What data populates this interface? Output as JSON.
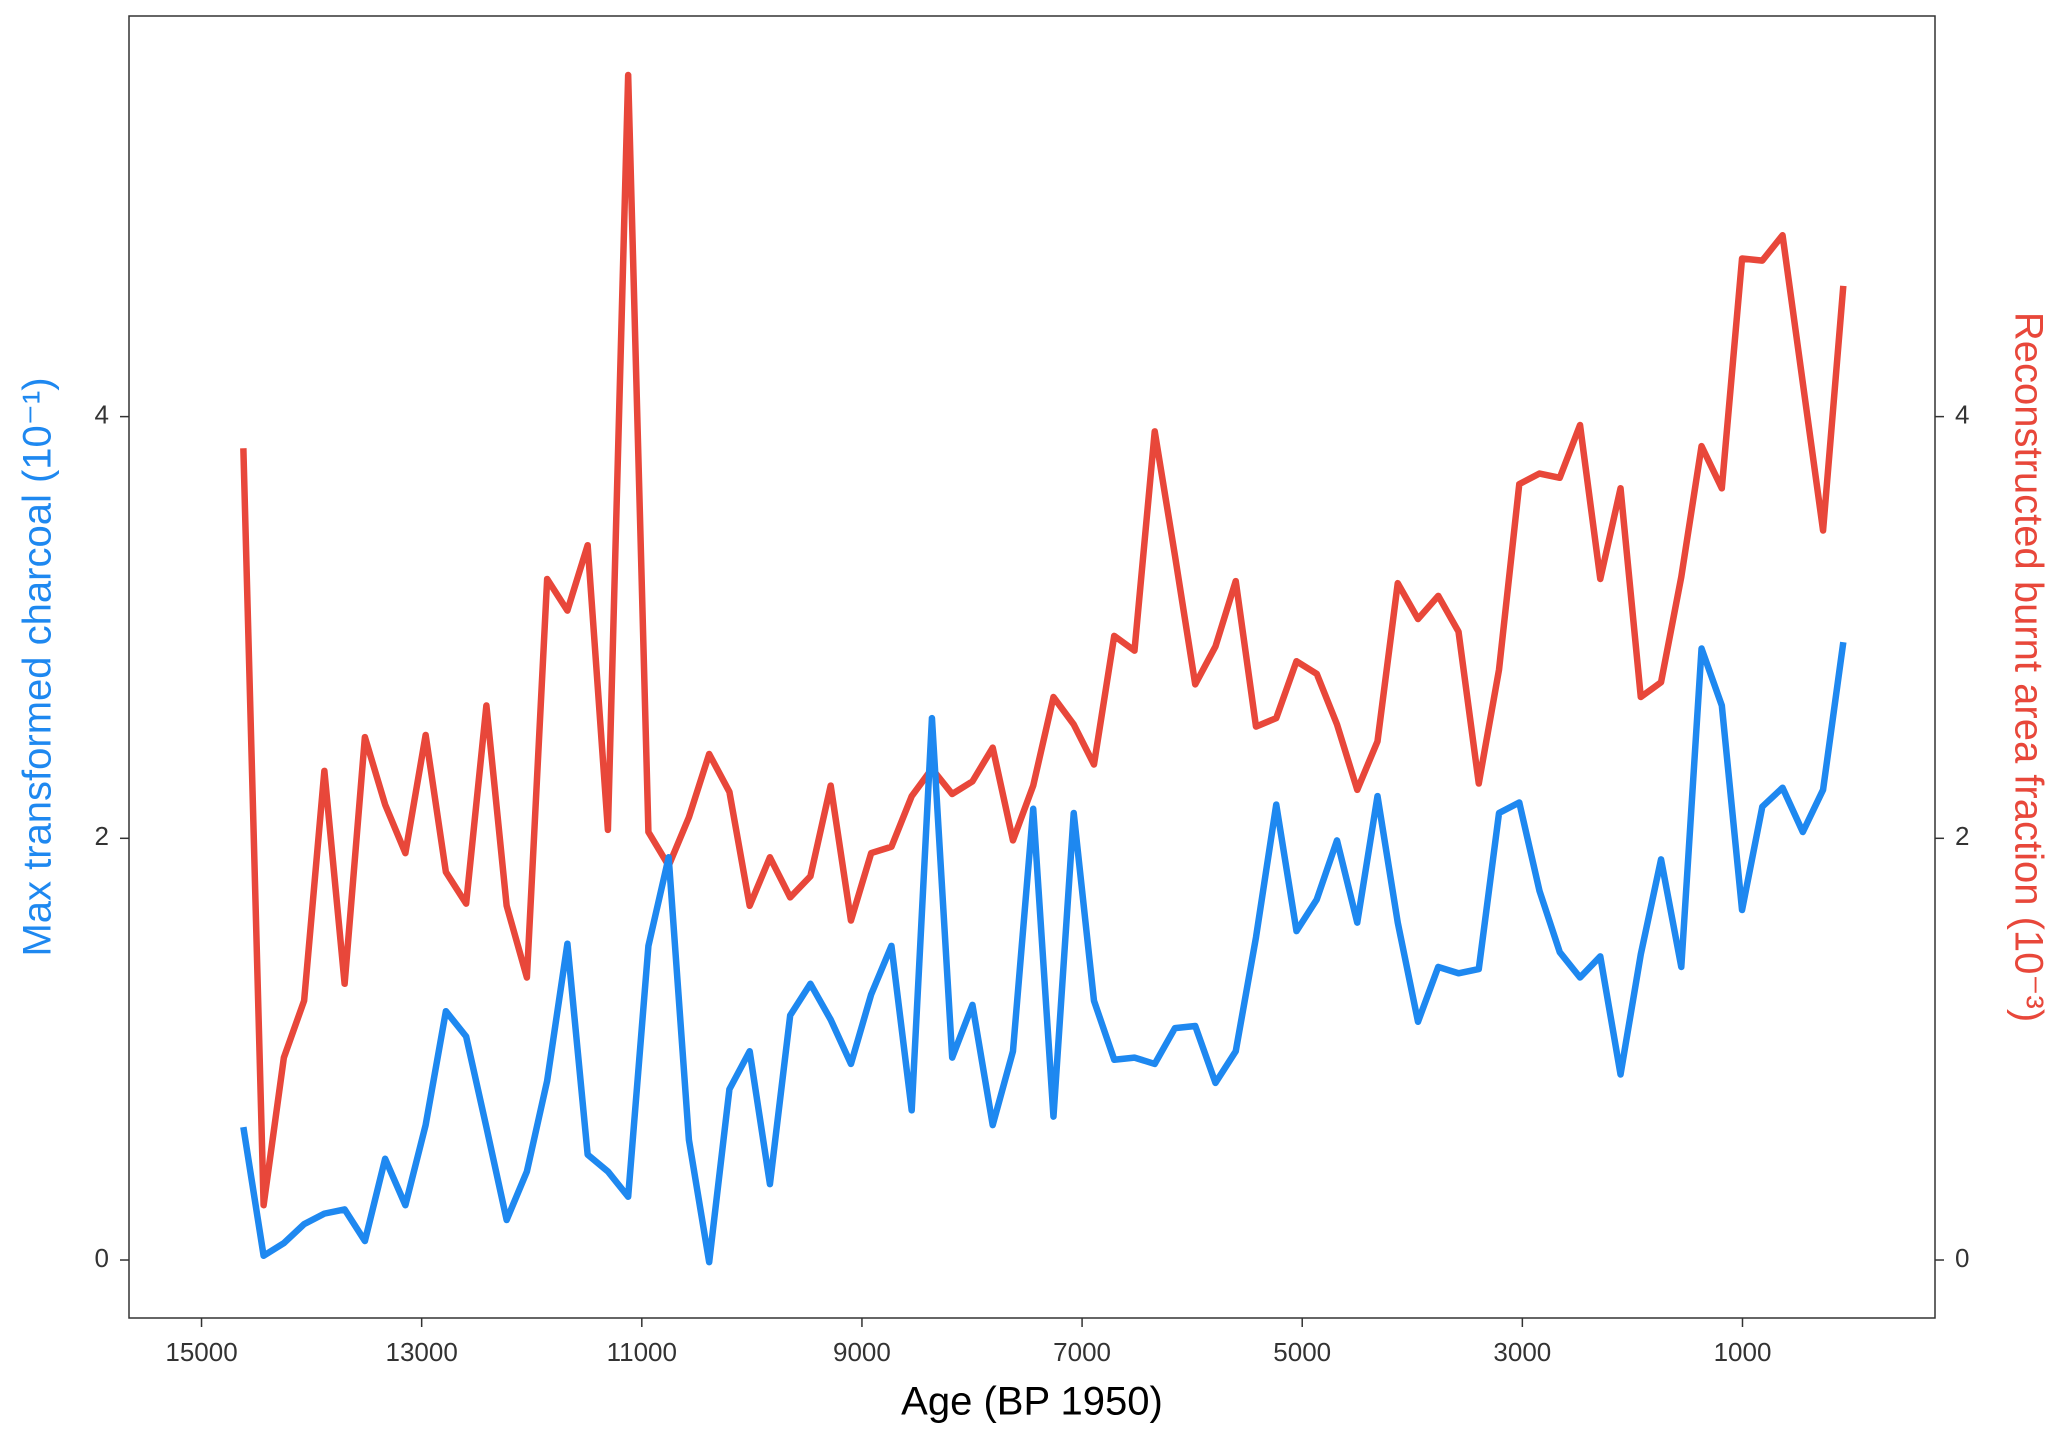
{
  "chart_data": {
    "type": "line",
    "xlabel": "Age (BP 1950)",
    "ylabel": "Max transformed charcoal (10⁻¹)",
    "y2label": "Reconstructed burnt area fraction (10⁻³)",
    "x": [
      14620,
      14436,
      14252,
      14068,
      13884,
      13700,
      13516,
      13332,
      13148,
      12964,
      12780,
      12596,
      12412,
      12228,
      12044,
      11860,
      11676,
      11492,
      11308,
      11124,
      10940,
      10756,
      10572,
      10388,
      10204,
      10020,
      9836,
      9652,
      9468,
      9284,
      9100,
      8916,
      8732,
      8548,
      8364,
      8180,
      7996,
      7812,
      7628,
      7444,
      7260,
      7076,
      6892,
      6708,
      6524,
      6340,
      6156,
      5972,
      5788,
      5604,
      5420,
      5236,
      5052,
      4868,
      4684,
      4500,
      4316,
      4132,
      3948,
      3764,
      3580,
      3396,
      3212,
      3028,
      2844,
      2660,
      2476,
      2292,
      2108,
      1924,
      1740,
      1556,
      1372,
      1188,
      1004,
      820,
      636,
      452,
      268,
      84
    ],
    "series": [
      {
        "color": "#1e88f0",
        "axis": "y",
        "values": [
          0.63,
          0.02,
          0.08,
          0.17,
          0.22,
          0.24,
          0.09,
          0.48,
          0.26,
          0.64,
          1.18,
          1.06,
          0.63,
          0.19,
          0.42,
          0.85,
          1.5,
          0.5,
          0.42,
          0.3,
          1.49,
          1.91,
          0.57,
          -0.01,
          0.81,
          0.99,
          0.36,
          1.16,
          1.31,
          1.14,
          0.93,
          1.26,
          1.49,
          0.71,
          2.57,
          0.96,
          1.21,
          0.64,
          0.99,
          2.14,
          0.68,
          2.12,
          1.23,
          0.95,
          0.96,
          0.93,
          1.1,
          1.11,
          0.84,
          0.99,
          1.53,
          2.16,
          1.56,
          1.71,
          1.99,
          1.6,
          2.2,
          1.6,
          1.13,
          1.39,
          1.36,
          1.38,
          2.12,
          2.17,
          1.75,
          1.46,
          1.34,
          1.44,
          0.88,
          1.45,
          1.9,
          1.39,
          2.9,
          2.63,
          1.66,
          2.15,
          2.24,
          2.03,
          2.23,
          2.93
        ]
      },
      {
        "color": "#e8473a",
        "axis": "y2",
        "values": [
          3.85,
          0.26,
          0.96,
          1.23,
          2.32,
          1.31,
          2.48,
          2.16,
          1.93,
          2.49,
          1.84,
          1.69,
          2.63,
          1.68,
          1.34,
          3.23,
          3.08,
          3.39,
          2.04,
          5.62,
          2.03,
          1.87,
          2.1,
          2.4,
          2.22,
          1.68,
          1.91,
          1.72,
          1.82,
          2.25,
          1.61,
          1.93,
          1.96,
          2.2,
          2.33,
          2.21,
          2.27,
          2.43,
          1.99,
          2.25,
          2.67,
          2.54,
          2.35,
          2.96,
          2.89,
          3.93,
          3.34,
          2.73,
          2.91,
          3.22,
          2.53,
          2.57,
          2.84,
          2.78,
          2.54,
          2.23,
          2.46,
          3.21,
          3.04,
          3.15,
          2.98,
          2.26,
          2.8,
          3.68,
          3.73,
          3.71,
          3.96,
          3.23,
          3.66,
          2.67,
          2.74,
          3.24,
          3.86,
          3.66,
          4.75,
          4.74,
          4.86,
          4.16,
          3.46,
          4.62
        ]
      }
    ],
    "xlim": [
      15659,
      -749
    ],
    "xticks": [
      15000,
      13000,
      11000,
      9000,
      7000,
      5000,
      3000,
      1000
    ],
    "ylim": [
      -0.275,
      5.9
    ],
    "yticks": [
      0,
      2,
      4
    ],
    "y2lim": [
      -0.275,
      5.9
    ],
    "y2ticks": [
      0,
      2,
      4
    ],
    "grid": false
  }
}
